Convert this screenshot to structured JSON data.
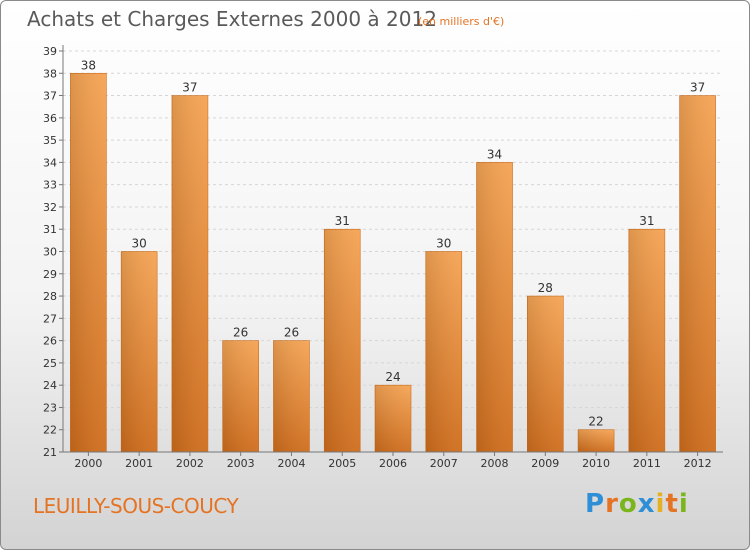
{
  "title": "Achats et Charges Externes 2000 à 2012",
  "unit": "(en milliers d'€)",
  "commune": "LEUILLY-SOUS-COUCY",
  "logo": {
    "text": "Proxiti",
    "letters": [
      {
        "char": "P",
        "color": "#2e8fd6"
      },
      {
        "char": "r",
        "color": "#e57324"
      },
      {
        "char": "o",
        "color": "#7ab51d"
      },
      {
        "char": "x",
        "color": "#2e8fd6"
      },
      {
        "char": "i",
        "color": "#e5b124"
      },
      {
        "char": "t",
        "color": "#e57324"
      },
      {
        "char": "i",
        "color": "#7ab51d"
      }
    ]
  },
  "chart_data": {
    "type": "bar",
    "categories": [
      "2000",
      "2001",
      "2002",
      "2003",
      "2004",
      "2005",
      "2006",
      "2007",
      "2008",
      "2009",
      "2010",
      "2011",
      "2012"
    ],
    "values": [
      38,
      30,
      37,
      26,
      26,
      31,
      24,
      30,
      34,
      28,
      22,
      31,
      37
    ],
    "ylim": [
      21,
      39
    ],
    "yticks": [
      21,
      22,
      23,
      24,
      25,
      26,
      27,
      28,
      29,
      30,
      31,
      32,
      33,
      34,
      35,
      36,
      37,
      38,
      39
    ],
    "grid": true,
    "bar_color": "#f19d4c",
    "bar_color_dark": "#d36f1c"
  }
}
